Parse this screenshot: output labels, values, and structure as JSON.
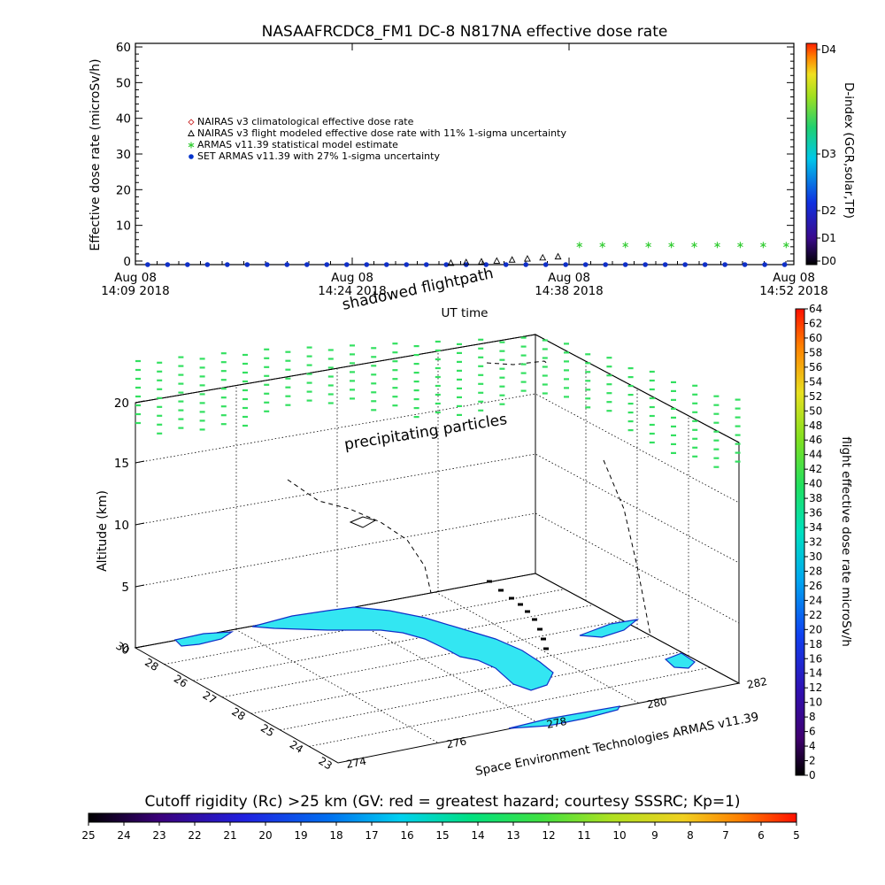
{
  "title": "NASAAFRCDC8_FM1 DC-8   N817NA effective dose rate",
  "chart_data": [
    {
      "type": "scatter",
      "ylabel": "Effective dose rate (microSv/h)",
      "xlabel": "UT time",
      "ylim": [
        -1,
        61
      ],
      "y_ticks": [
        "0",
        "10",
        "20",
        "30",
        "40",
        "50",
        "60"
      ],
      "x_ticks": [
        {
          "line1": "Aug 08",
          "line2": "14:09 2018"
        },
        {
          "line1": "Aug 08",
          "line2": "14:24 2018"
        },
        {
          "line1": "Aug 08",
          "line2": "14:38 2018"
        },
        {
          "line1": "Aug 08",
          "line2": "14:52 2018"
        }
      ],
      "xlim_minutes_after_1409": [
        0,
        43
      ],
      "legend": [
        {
          "marker": "diamond",
          "color": "#cc3333",
          "label": "NAIRAS v3 climatological effective dose rate"
        },
        {
          "marker": "triangle",
          "color": "#000000",
          "label": "NAIRAS v3 flight modeled effective dose rate with 11% 1-sigma uncertainty"
        },
        {
          "marker": "asterisk",
          "color": "#33cc33",
          "label": "ARMAS v11.39 statistical model estimate"
        },
        {
          "marker": "dot",
          "color": "#0033cc",
          "label": "SET ARMAS v11.39 with 27% 1-sigma uncertainty"
        }
      ],
      "series": [
        {
          "name": "SET ARMAS v11.39 with 27% 1-sigma uncertainty",
          "marker": "dot",
          "color": "#1030c8",
          "x_min": [
            0.8,
            2.1,
            3.4,
            4.7,
            6.0,
            7.3,
            8.6,
            9.9,
            11.2,
            12.5,
            13.8,
            15.1,
            16.4,
            17.7,
            19.0,
            20.3,
            21.6,
            22.9,
            24.2,
            25.5,
            26.8,
            28.1,
            29.4,
            30.7,
            32.0,
            33.3,
            34.6,
            35.9,
            37.2,
            38.5,
            39.8,
            41.1,
            42.4
          ],
          "y": [
            -1,
            -1,
            -1,
            -1,
            -1,
            -1,
            -1,
            -1,
            -1,
            -1,
            -1,
            -1,
            -1,
            -1,
            -1,
            -1,
            -1,
            -1,
            -1,
            -1,
            -1,
            -1,
            -1,
            -1,
            -1,
            -1,
            -1,
            -1,
            -1,
            -1,
            -1,
            -1,
            -1
          ]
        },
        {
          "name": "NAIRAS v3 flight modeled effective dose rate with 11% 1-sigma uncertainty",
          "marker": "triangle",
          "color": "#000000",
          "x_min": [
            20.6,
            21.6,
            22.6,
            23.6,
            24.6,
            25.6,
            26.6,
            27.6
          ],
          "y": [
            -0.6,
            -0.4,
            -0.2,
            0.0,
            0.3,
            0.6,
            0.9,
            1.2
          ]
        },
        {
          "name": "ARMAS v11.39 statistical model estimate",
          "marker": "asterisk",
          "color": "#33cc33",
          "x_min": [
            29.0,
            30.5,
            32.0,
            33.5,
            35.0,
            36.5,
            38.0,
            39.5,
            41.0,
            42.5
          ],
          "y": [
            4.5,
            4.5,
            4.5,
            4.5,
            4.5,
            4.5,
            4.5,
            4.5,
            4.5,
            4.5
          ]
        }
      ],
      "right_colorbar": {
        "label": "D-index (GCR,solar,TP)",
        "ticks": [
          "D0",
          "D1",
          "D2",
          "D3",
          "D4"
        ]
      }
    },
    {
      "type": "scatter3d",
      "zlabel": "Altitude (km)",
      "z_ticks": [
        "0",
        "5",
        "10",
        "15",
        "20"
      ],
      "lat_ticks": [
        "30",
        "28",
        "26",
        "27",
        "28",
        "25",
        "24",
        "23"
      ],
      "lon_ticks": [
        "274",
        "276",
        "278",
        "280",
        "282"
      ],
      "annotations": [
        "shadowed flightpath",
        "precipitating particles"
      ],
      "credit": "Space Environment Technologies ARMAS v11.39",
      "land_color": "#33e6f2",
      "right_colorbar": {
        "label": "flight effective dose rate microSv/h",
        "ticks": [
          "0",
          "2",
          "4",
          "6",
          "8",
          "10",
          "12",
          "14",
          "16",
          "18",
          "20",
          "22",
          "24",
          "26",
          "28",
          "30",
          "32",
          "34",
          "36",
          "38",
          "40",
          "42",
          "44",
          "46",
          "48",
          "50",
          "52",
          "54",
          "56",
          "58",
          "60",
          "62",
          "64"
        ]
      }
    },
    {
      "type": "colorbar",
      "title": "Cutoff rigidity (Rc) >25 km (GV: red = greatest hazard; courtesy SSSRC; Kp=1)",
      "ticks": [
        "25",
        "24",
        "23",
        "22",
        "21",
        "20",
        "19",
        "18",
        "17",
        "16",
        "15",
        "14",
        "13",
        "12",
        "11",
        "10",
        "9",
        "8",
        "7",
        "6",
        "5"
      ]
    }
  ]
}
